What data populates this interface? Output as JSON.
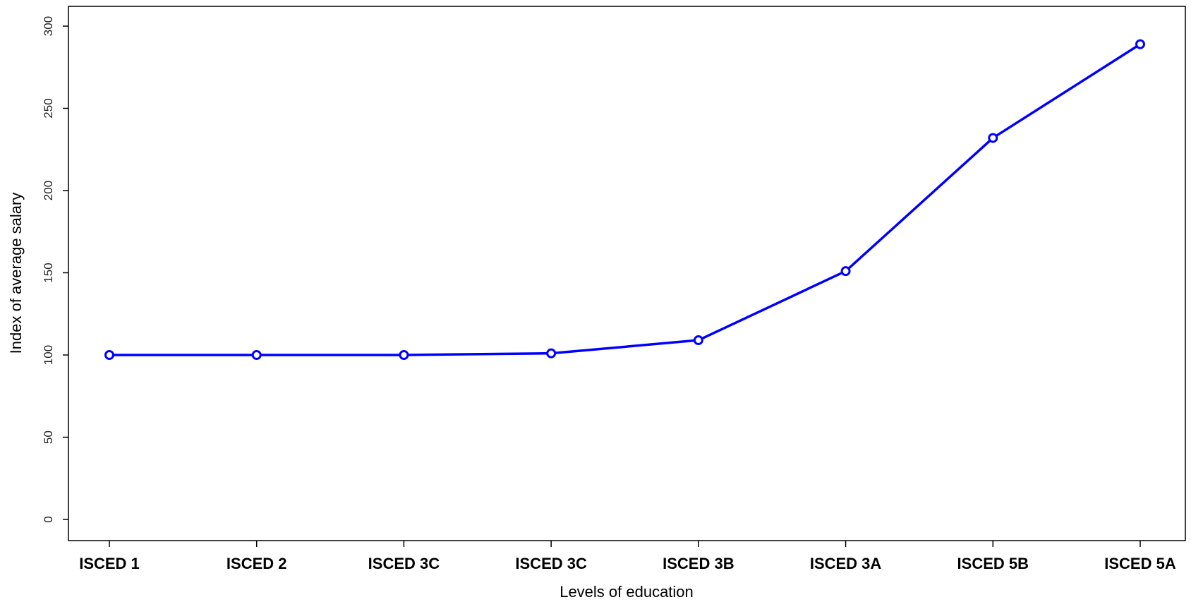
{
  "chart_data": {
    "type": "line",
    "title": "",
    "xlabel": "Levels of education",
    "ylabel": "Index of average salary",
    "categories": [
      "ISCED 1",
      "ISCED 2",
      "ISCED 3C",
      "ISCED 3C",
      "ISCED 3B",
      "ISCED 3A",
      "ISCED 5B",
      "ISCED 5A"
    ],
    "series": [
      {
        "values": [
          100,
          100,
          100,
          101,
          109,
          151,
          232,
          289
        ]
      }
    ],
    "yticks": [
      0,
      50,
      100,
      150,
      200,
      250,
      300
    ],
    "ylim": [
      0,
      300
    ],
    "grid": false,
    "legend": "none",
    "line_color": "#0000ff"
  }
}
